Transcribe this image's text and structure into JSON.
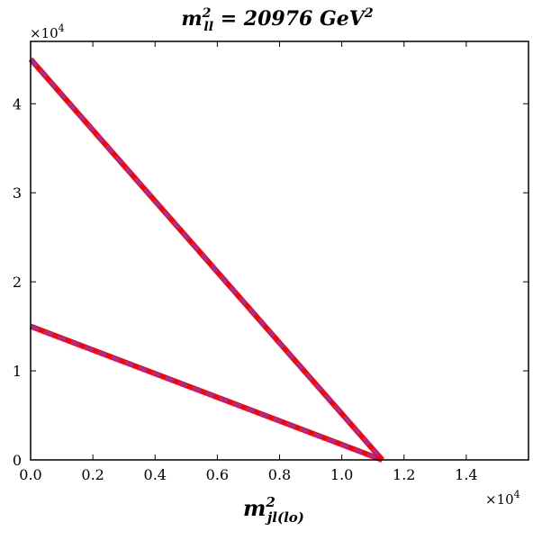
{
  "chart_data": {
    "type": "line",
    "title": {
      "pre": "m",
      "sup": "2",
      "sub": "ll",
      "post": " = 20976 GeV",
      "post_sup": "2"
    },
    "xlabel": {
      "base": "m",
      "sup": "2",
      "sub": "jl(lo)"
    },
    "ylabel": "",
    "xlim": [
      0,
      16000
    ],
    "ylim": [
      0,
      47000
    ],
    "x_ticks": [
      0,
      2000,
      4000,
      6000,
      8000,
      10000,
      12000,
      14000
    ],
    "x_tick_labels": [
      "0.0",
      "0.2",
      "0.4",
      "0.6",
      "0.8",
      "1.0",
      "1.2",
      "1.4"
    ],
    "y_ticks": [
      0,
      10000,
      20000,
      30000,
      40000
    ],
    "y_tick_labels": [
      "0",
      "1",
      "2",
      "3",
      "4"
    ],
    "x_multiplier": {
      "base": "×10",
      "exp": "4"
    },
    "y_multiplier": {
      "base": "×10",
      "exp": "4"
    },
    "grid": false,
    "series": [
      {
        "x": [
          0,
          11300
        ],
        "y": [
          45000,
          0
        ],
        "color": "#ff0000",
        "style": "solid"
      },
      {
        "x": [
          0,
          11300
        ],
        "y": [
          45000,
          0
        ],
        "color": "#9b30a8",
        "style": "dashed"
      },
      {
        "x": [
          0,
          11300
        ],
        "y": [
          15000,
          0
        ],
        "color": "#ff0000",
        "style": "solid"
      },
      {
        "x": [
          0,
          11300
        ],
        "y": [
          15000,
          0
        ],
        "color": "#9b30a8",
        "style": "dashed"
      }
    ]
  }
}
